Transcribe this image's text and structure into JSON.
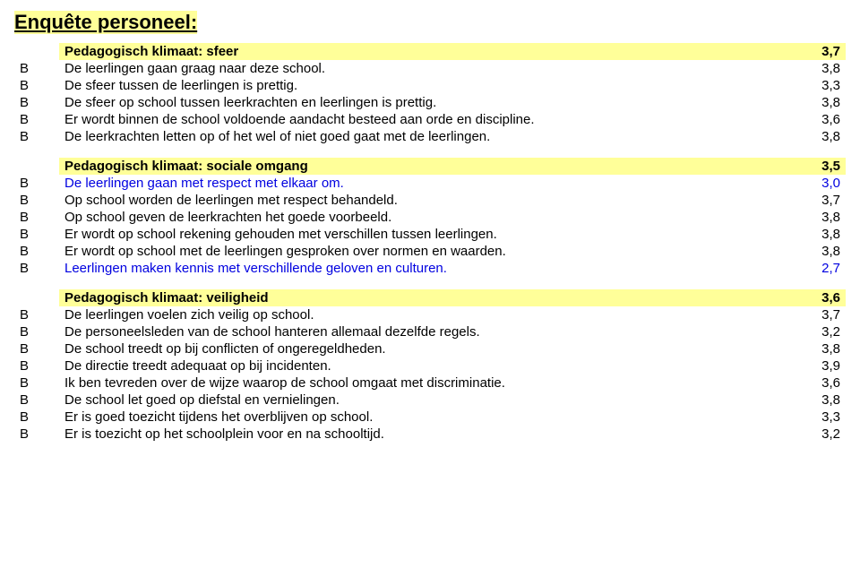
{
  "title": "Enquête personeel:",
  "colors": {
    "highlight": "#ffff99",
    "blue": "#0000e0",
    "text": "#000000",
    "background": "#ffffff"
  },
  "sections": [
    {
      "header": {
        "label": "Pedagogisch klimaat: sfeer",
        "score": "3,7"
      },
      "rows": [
        {
          "code": "B",
          "text": "De leerlingen gaan graag naar deze school.",
          "score": "3,8",
          "blue": false
        },
        {
          "code": "B",
          "text": "De sfeer tussen de leerlingen is prettig.",
          "score": "3,3",
          "blue": false
        },
        {
          "code": "B",
          "text": "De sfeer op school tussen leerkrachten en leerlingen is prettig.",
          "score": "3,8",
          "blue": false
        },
        {
          "code": "B",
          "text": "Er wordt binnen de school voldoende aandacht besteed aan orde en discipline.",
          "score": "3,6",
          "blue": false
        },
        {
          "code": "B",
          "text": "De leerkrachten letten op of het wel of niet goed gaat met de leerlingen.",
          "score": "3,8",
          "blue": false
        }
      ]
    },
    {
      "header": {
        "label": "Pedagogisch klimaat: sociale omgang",
        "score": "3,5"
      },
      "rows": [
        {
          "code": "B",
          "text": "De leerlingen gaan met respect met elkaar om.",
          "score": "3,0",
          "blue": true
        },
        {
          "code": "B",
          "text": "Op school worden de leerlingen met respect behandeld.",
          "score": "3,7",
          "blue": false
        },
        {
          "code": "B",
          "text": "Op school geven de leerkrachten het goede voorbeeld.",
          "score": "3,8",
          "blue": false
        },
        {
          "code": "B",
          "text": "Er wordt op school rekening gehouden met verschillen tussen leerlingen.",
          "score": "3,8",
          "blue": false
        },
        {
          "code": "B",
          "text": "Er wordt op school met de leerlingen gesproken over normen en waarden.",
          "score": "3,8",
          "blue": false
        },
        {
          "code": "B",
          "text": "Leerlingen maken kennis met verschillende geloven en culturen.",
          "score": "2,7",
          "blue": true
        }
      ]
    },
    {
      "header": {
        "label": "Pedagogisch klimaat: veiligheid",
        "score": "3,6"
      },
      "rows": [
        {
          "code": "B",
          "text": "De leerlingen voelen zich veilig op school.",
          "score": "3,7",
          "blue": false
        },
        {
          "code": "B",
          "text": "De personeelsleden van de school hanteren allemaal dezelfde regels.",
          "score": "3,2",
          "blue": false
        },
        {
          "code": "B",
          "text": "De school treedt op bij conflicten of ongeregeldheden.",
          "score": "3,8",
          "blue": false
        },
        {
          "code": "B",
          "text": "De directie treedt adequaat op bij incidenten.",
          "score": "3,9",
          "blue": false
        },
        {
          "code": "B",
          "text": "Ik ben tevreden over de wijze waarop de school omgaat met discriminatie.",
          "score": "3,6",
          "blue": false
        },
        {
          "code": "B",
          "text": "De school let goed op diefstal en vernielingen.",
          "score": "3,8",
          "blue": false
        },
        {
          "code": "B",
          "text": "Er is goed toezicht tijdens het overblijven op school.",
          "score": "3,3",
          "blue": false
        },
        {
          "code": "B",
          "text": "Er is toezicht op het schoolplein voor en na schooltijd.",
          "score": "3,2",
          "blue": false
        }
      ]
    }
  ]
}
